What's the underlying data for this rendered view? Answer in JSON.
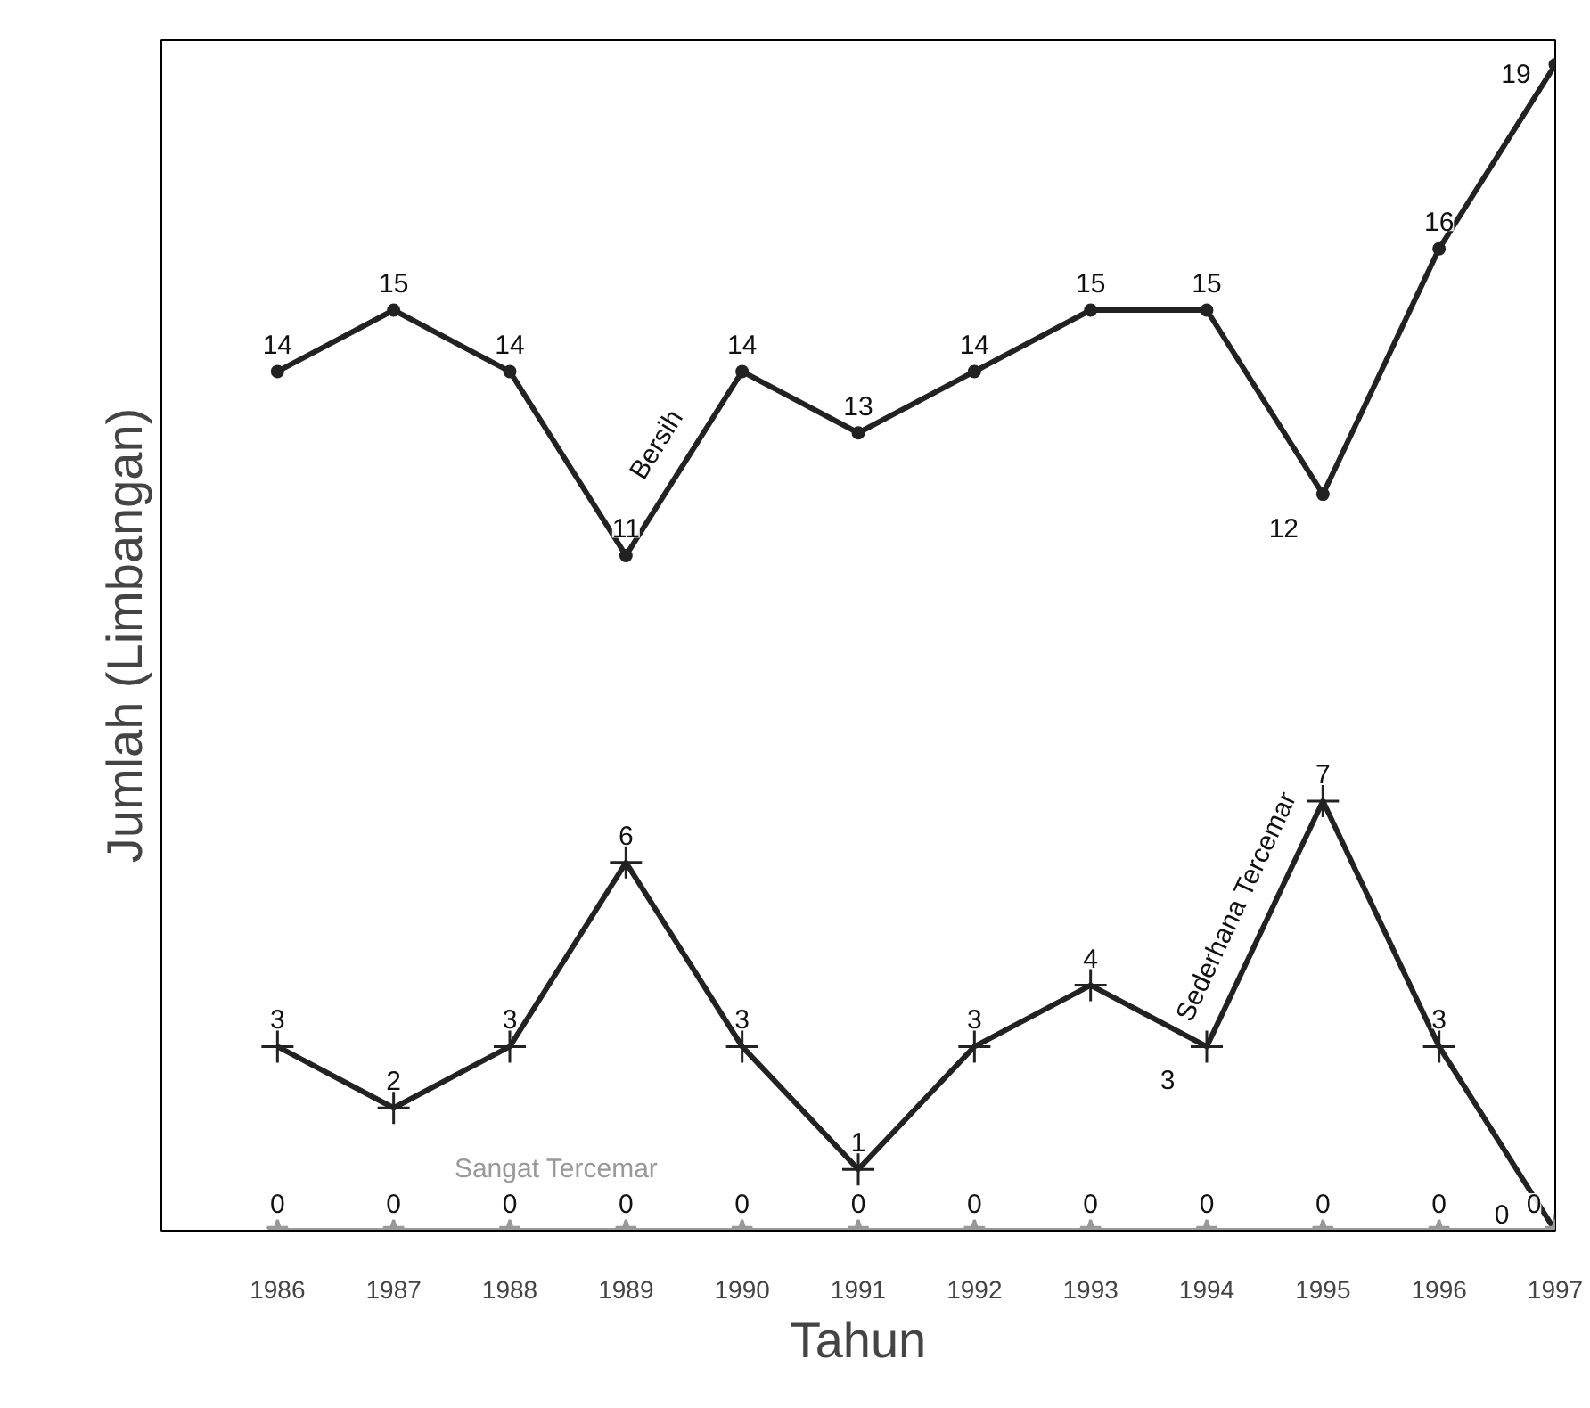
{
  "chart_data": {
    "type": "line",
    "xlabel": "Tahun",
    "ylabel": "Jumlah (Limbangan)",
    "x": [
      1986,
      1987,
      1988,
      1989,
      1990,
      1991,
      1992,
      1993,
      1994,
      1995,
      1996,
      1997
    ],
    "xlim": [
      1985,
      1997
    ],
    "xticks": [
      1986,
      1987,
      1988,
      1989,
      1990,
      1991,
      1992,
      1993,
      1994,
      1995,
      1996,
      1997
    ],
    "ylim": [
      0,
      19.4
    ],
    "tick_labels": "x",
    "grid": false,
    "data_labels": true,
    "series": [
      {
        "name": "Bersih",
        "color": "#222222",
        "marker": "circle",
        "values": [
          14,
          15,
          14,
          11,
          14,
          13,
          14,
          15,
          15,
          12,
          16,
          19
        ]
      },
      {
        "name": "Sederhana Tercemar",
        "color": "#222222",
        "marker": "cross",
        "values": [
          3,
          2,
          3,
          6,
          3,
          1,
          3,
          4,
          3,
          7,
          3,
          0
        ]
      },
      {
        "name": "Sangat Tercemar",
        "color": "#999999",
        "marker": "star",
        "values": [
          0,
          0,
          0,
          0,
          0,
          0,
          0,
          0,
          0,
          0,
          0,
          0
        ]
      }
    ]
  }
}
